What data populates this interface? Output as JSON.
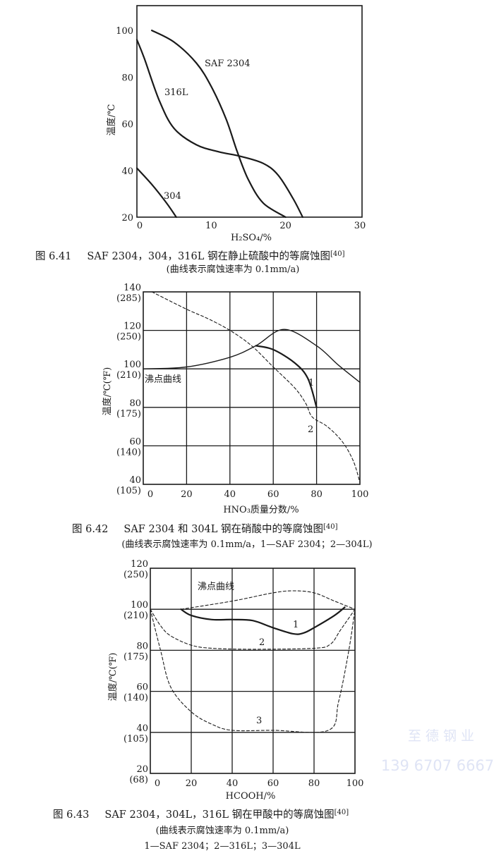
{
  "chart_data": [
    {
      "type": "line",
      "xlabel": "H₂SO₄/%",
      "ylabel": "温度/℃",
      "xlim": [
        0,
        30
      ],
      "ylim": [
        20,
        110
      ],
      "xticks": [
        "0",
        "10",
        "20",
        "30"
      ],
      "yticks": [
        "20",
        "40",
        "60",
        "80",
        "100"
      ],
      "grid": false,
      "series": [
        {
          "name": "SAF 2304",
          "style": "solid",
          "x": [
            2,
            5,
            8,
            10,
            12,
            13.5,
            15,
            17,
            20
          ],
          "y": [
            100,
            95,
            86,
            76,
            62,
            48,
            36,
            26,
            20
          ]
        },
        {
          "name": "316L",
          "style": "solid",
          "x": [
            0,
            1,
            3,
            5,
            8,
            11,
            14,
            17,
            19,
            21,
            22.3
          ],
          "y": [
            96,
            88,
            70,
            58,
            51,
            48,
            46,
            43,
            38,
            28,
            20
          ]
        },
        {
          "name": "304",
          "style": "solid",
          "x": [
            0,
            2,
            4,
            5.3
          ],
          "y": [
            41,
            34,
            26,
            20
          ]
        }
      ],
      "caption": {
        "number": "图 6.41",
        "text": "SAF 2304，304，316L 钢在静止硫酸中的等腐蚀图",
        "ref": "[40]",
        "note": "(曲线表示腐蚀速率为 0.1mm/a)"
      }
    },
    {
      "type": "line",
      "xlabel": "HNO₃质量分数/%",
      "ylabel": "温度/℃(℉)",
      "xlim": [
        0,
        100
      ],
      "ylim": [
        40,
        140
      ],
      "xticks": [
        "0",
        "20",
        "40",
        "60",
        "80",
        "100"
      ],
      "yticks": [
        {
          "c": "40",
          "f": "(105)"
        },
        {
          "c": "60",
          "f": "(140)"
        },
        {
          "c": "80",
          "f": "(175)"
        },
        {
          "c": "100",
          "f": "(210)"
        },
        {
          "c": "120",
          "f": "(250)"
        },
        {
          "c": "140",
          "f": "(285)"
        }
      ],
      "grid": true,
      "annotations": [
        "沸点曲线",
        "1",
        "2"
      ],
      "series": [
        {
          "name": "沸点曲线",
          "style": "solid-thin",
          "x": [
            0,
            20,
            40,
            52,
            65,
            80,
            90,
            100
          ],
          "y": [
            100,
            101,
            106,
            112,
            120.5,
            112,
            102,
            93
          ]
        },
        {
          "name": "1",
          "style": "solid",
          "x": [
            52,
            60,
            70,
            76,
            80
          ],
          "y": [
            112,
            110,
            103,
            95,
            80
          ]
        },
        {
          "name": "2",
          "style": "dashed",
          "x": [
            4,
            20,
            30,
            40,
            50,
            60,
            70,
            75,
            78,
            85,
            92,
            97,
            100
          ],
          "y": [
            140,
            131,
            126,
            120,
            112,
            101,
            90,
            82,
            75,
            70,
            62,
            52,
            41
          ]
        }
      ],
      "caption": {
        "number": "图 6.42",
        "text": "SAF 2304 和 304L 钢在硝酸中的等腐蚀图",
        "ref": "[40]",
        "note": "(曲线表示腐蚀速率为 0.1mm/a，1—SAF 2304；2—304L)"
      }
    },
    {
      "type": "line",
      "xlabel": "HCOOH/%",
      "ylabel": "温度/℃(℉)",
      "xlim": [
        0,
        100
      ],
      "ylim": [
        20,
        120
      ],
      "xticks": [
        "0",
        "20",
        "40",
        "60",
        "80",
        "100"
      ],
      "yticks": [
        {
          "c": "20",
          "f": "(68)"
        },
        {
          "c": "40",
          "f": "(105)"
        },
        {
          "c": "60",
          "f": "(140)"
        },
        {
          "c": "80",
          "f": "(175)"
        },
        {
          "c": "100",
          "f": "(210)"
        },
        {
          "c": "120",
          "f": "(250)"
        }
      ],
      "grid": true,
      "annotations": [
        "沸点曲线",
        "1",
        "2",
        "3"
      ],
      "series": [
        {
          "name": "沸点曲线",
          "style": "dashed",
          "x": [
            15,
            40,
            60,
            70,
            80,
            90,
            100
          ],
          "y": [
            100,
            104,
            108,
            109,
            108,
            104,
            100
          ]
        },
        {
          "name": "1",
          "style": "solid",
          "x": [
            15,
            20,
            30,
            40,
            50,
            60,
            70,
            75,
            80,
            90,
            95
          ],
          "y": [
            100,
            97,
            95,
            95,
            94.5,
            91,
            88,
            88.5,
            91,
            97,
            101
          ]
        },
        {
          "name": "2",
          "style": "dashed",
          "x": [
            0,
            5,
            10,
            20,
            30,
            50,
            80,
            88,
            93,
            100
          ],
          "y": [
            100,
            92,
            87,
            82.5,
            81,
            80.5,
            81,
            83,
            90,
            100
          ]
        },
        {
          "name": "3",
          "style": "dashed",
          "x": [
            0,
            5,
            10,
            20,
            30,
            40,
            60,
            87,
            92,
            97,
            100
          ],
          "y": [
            100,
            80,
            62,
            50,
            44,
            41,
            41,
            41,
            55,
            80,
            100
          ]
        }
      ],
      "caption": {
        "number": "图 6.43",
        "text": "SAF 2304，304L，316L 钢在甲酸中的等腐蚀图",
        "ref": "[40]",
        "note": "(曲线表示腐蚀速率为 0.1mm/a)",
        "legend": "1—SAF 2304；2—316L；3—304L"
      }
    }
  ],
  "watermark": {
    "company": "至 德 钢 业",
    "phone": "139 6707 6667"
  }
}
